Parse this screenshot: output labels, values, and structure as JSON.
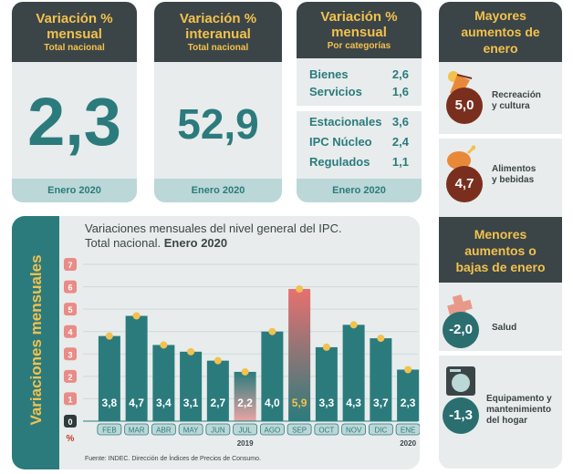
{
  "cards": {
    "mensual": {
      "title": "Variación %",
      "title2": "mensual",
      "subtitle": "Total nacional",
      "value": "2,3",
      "footer": "Enero 2020"
    },
    "interanual": {
      "title": "Variación %",
      "title2": "interanual",
      "subtitle": "Total nacional",
      "value": "52,9",
      "footer": "Enero 2020"
    },
    "categorias": {
      "title": "Variación %",
      "title2": "mensual",
      "subtitle": "Por categorías",
      "footer": "Enero 2020",
      "group1": [
        {
          "label": "Bienes",
          "value": "2,6"
        },
        {
          "label": "Servicios",
          "value": "1,6"
        }
      ],
      "group2": [
        {
          "label": "Estacionales",
          "value": "3,6"
        },
        {
          "label": "IPC Núcleo",
          "value": "2,4"
        },
        {
          "label": "Regulados",
          "value": "1,1"
        }
      ]
    }
  },
  "right_panel": {
    "mayores_title": "Mayores aumentos de enero",
    "mayores": [
      {
        "value": "5,0",
        "label1": "Recreación",
        "label2": "y cultura",
        "icon": "travel-icon",
        "color": "#7a2f1e"
      },
      {
        "value": "4,7",
        "label1": "Alimentos",
        "label2": "y bebidas",
        "icon": "chicken-icon",
        "color": "#7a2f1e"
      }
    ],
    "menores_title": "Menores aumentos o bajas de enero",
    "menores": [
      {
        "value": "-2,0",
        "label1": "Salud",
        "label2": "",
        "icon": "health-cross-icon",
        "color": "#2b6e70"
      },
      {
        "value": "-1,3",
        "label1": "Equipamento y",
        "label2": "mantenimiento",
        "label3": "del hogar",
        "icon": "washing-machine-icon",
        "color": "#2b6e70"
      }
    ]
  },
  "chart_data": {
    "type": "bar",
    "title": "Variaciones mensuales del nivel general del IPC.",
    "subtitle_plain": "Total nacional.",
    "subtitle_bold": "Enero 2020",
    "ylabel": "Variaciones mensuales",
    "yunit": "%",
    "ylim": [
      0,
      7
    ],
    "yticks": [
      "0",
      "1",
      "2",
      "3",
      "4",
      "5",
      "6",
      "7"
    ],
    "categories": [
      "FEB",
      "MAR",
      "ABR",
      "MAY",
      "JUN",
      "JUL",
      "AGO",
      "SEP",
      "OCT",
      "NOV",
      "DIC",
      "ENE"
    ],
    "values": [
      3.8,
      4.7,
      3.4,
      3.1,
      2.7,
      2.2,
      4.0,
      5.9,
      3.3,
      4.3,
      3.7,
      2.3
    ],
    "value_labels": [
      "3,8",
      "4,7",
      "3,4",
      "3,1",
      "2,7",
      "2,2",
      "4,0",
      "5,9",
      "3,3",
      "4,3",
      "3,7",
      "2,3"
    ],
    "year_labels": [
      {
        "text": "2019",
        "category": "JUL"
      },
      {
        "text": "2020",
        "category": "ENE"
      }
    ],
    "highlight": {
      "max": "SEP",
      "min": "JUL"
    },
    "source": "Fuente: INDEC. Dirección de Índices de Precios de Consumo.",
    "colors": {
      "bar": "#2b7b7d",
      "marker": "#f2c14e",
      "high": "#e87070",
      "low": "#e8a4a4"
    }
  }
}
